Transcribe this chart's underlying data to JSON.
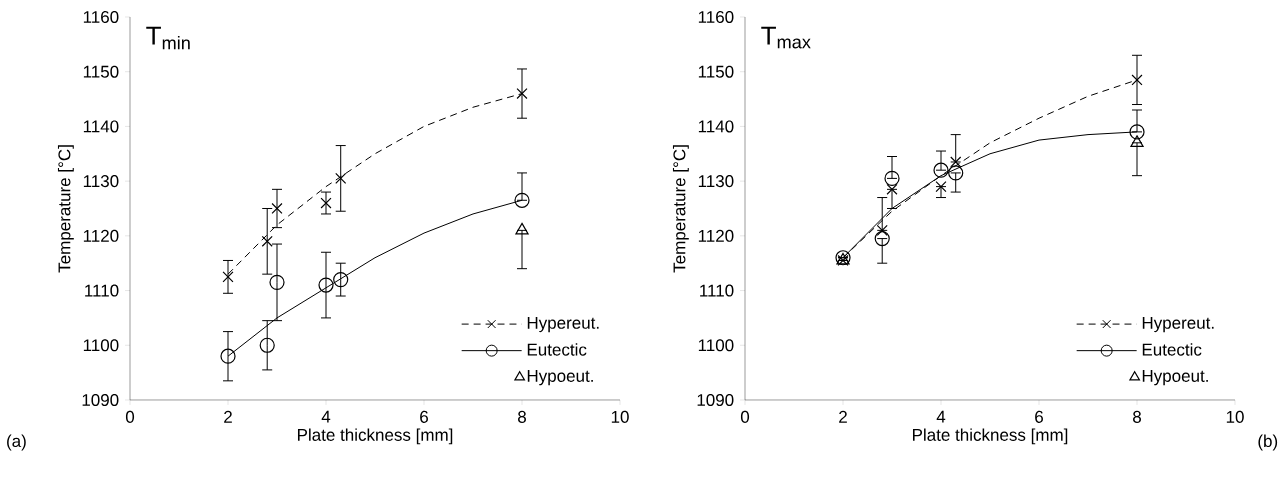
{
  "chart_data": [
    {
      "type": "scatter",
      "xlabel": "Plate thickness [mm]",
      "ylabel": "Temperature [°C]",
      "annotations": [
        "T$_{min}$",
        "(a)"
      ],
      "xlim": [
        0,
        10
      ],
      "ylim": [
        1090,
        1160
      ],
      "xticks": [
        0,
        2,
        4,
        6,
        8,
        10
      ],
      "yticks": [
        1090,
        1100,
        1110,
        1120,
        1130,
        1140,
        1150,
        1160
      ],
      "legend": "bottom right",
      "series": [
        {
          "color": "#000000",
          "marker": "cross",
          "x": [
            2,
            2.8,
            3,
            4,
            4.3,
            8
          ],
          "values": [
            1112.5,
            1119,
            1125,
            1126,
            1130.5,
            1146
          ],
          "errors": [
            3,
            6,
            3.5,
            2,
            6,
            4.5
          ]
        },
        {
          "color": "#000000",
          "marker": "circle",
          "x": [
            2,
            2.8,
            3,
            4,
            4.3,
            8
          ],
          "values": [
            1098,
            1100,
            1111.5,
            1111,
            1112,
            1126.5
          ],
          "errors": [
            4.5,
            4.5,
            7,
            6,
            3,
            [
              1126.5,
              1131.5
            ]
          ]
        },
        {
          "name": "Hypoeut.",
          "color": "#000000",
          "marker": "triangle",
          "x": [
            8
          ],
          "values": [
            1121
          ],
          "errors": [
            [
              1114,
              1121
            ]
          ]
        },
        {
          "type": "line",
          "name": "Hypereut.",
          "color": "#000000",
          "line_style": "dashed",
          "x": [
            2,
            3,
            4,
            5,
            6,
            7,
            8
          ],
          "values": [
            1113,
            1122,
            1129,
            1135,
            1140,
            1143.5,
            1146
          ]
        },
        {
          "type": "line",
          "name": "Eutectic",
          "color": "#000000",
          "line_style": "solid",
          "x": [
            2,
            3,
            4,
            5,
            6,
            7,
            8
          ],
          "values": [
            1098,
            1105,
            1110.5,
            1116,
            1120.5,
            1124,
            1126.5
          ]
        }
      ]
    },
    {
      "type": "scatter",
      "xlabel": "Plate thickness [mm]",
      "ylabel": "Temperature [°C]",
      "annotations": [
        "T$_{max}$",
        "(b)"
      ],
      "xlim": [
        0,
        10
      ],
      "ylim": [
        1090,
        1160
      ],
      "xticks": [
        0,
        2,
        4,
        6,
        8,
        10
      ],
      "yticks": [
        1090,
        1100,
        1110,
        1120,
        1130,
        1140,
        1150,
        1160
      ],
      "legend": "bottom right",
      "series": [
        {
          "color": "#000000",
          "marker": "cross",
          "x": [
            2,
            2.8,
            3,
            4,
            4.3,
            8
          ],
          "values": [
            1115.5,
            1121,
            1128.5,
            1129,
            1133.5,
            1148.5
          ],
          "errors": [
            null,
            [
              1121,
              1127
            ],
            [
              1125,
              1128.5
            ],
            [
              1127,
              1129
            ],
            [
              1133.5,
              1138.5
            ],
            4.5
          ]
        },
        {
          "color": "#000000",
          "marker": "circle",
          "x": [
            2,
            2.8,
            3,
            4,
            4.3,
            8
          ],
          "values": [
            1116,
            1119.5,
            1130.5,
            1132,
            1131.5,
            1139
          ],
          "errors": [
            null,
            [
              1115,
              1119.5
            ],
            [
              1130.5,
              1134.5
            ],
            [
              1132,
              1135.5
            ],
            [
              1128,
              1131.5
            ],
            [
              1139,
              1143
            ]
          ]
        },
        {
          "name": "Hypoeut.",
          "color": "#000000",
          "marker": "triangle",
          "x": [
            2,
            8
          ],
          "values": [
            1115.5,
            1137
          ],
          "errors": [
            null,
            [
              1131,
              1137
            ]
          ]
        },
        {
          "type": "line",
          "name": "Hypereut.",
          "color": "#000000",
          "line_style": "dashed",
          "x": [
            2,
            3,
            4,
            5,
            6,
            7,
            8
          ],
          "values": [
            1116,
            1124.5,
            1131,
            1137,
            1141.5,
            1145.5,
            1148.5
          ]
        },
        {
          "type": "line",
          "name": "Eutectic",
          "color": "#000000",
          "line_style": "solid",
          "x": [
            2,
            3,
            4,
            5,
            6,
            7,
            8
          ],
          "values": [
            1116,
            1125,
            1131,
            1135,
            1137.5,
            1138.5,
            1139
          ]
        }
      ]
    }
  ]
}
